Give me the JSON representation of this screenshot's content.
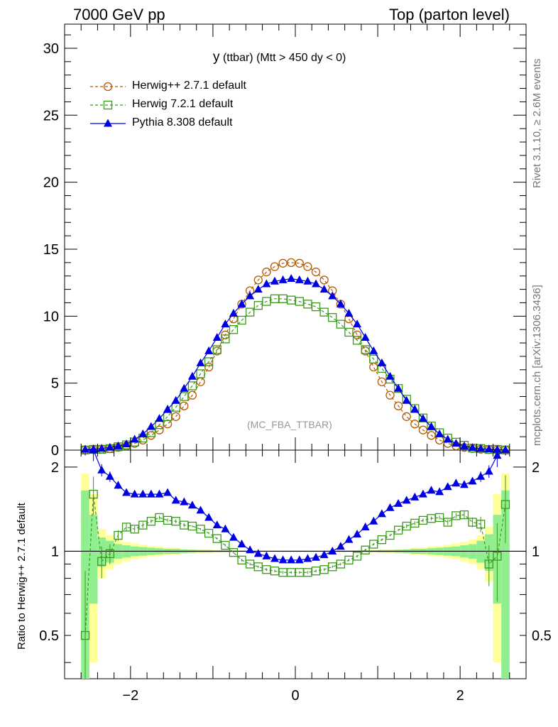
{
  "header": {
    "left": "7000 GeV pp",
    "right": "Top (parton level)"
  },
  "side_texts": {
    "rivet": "Rivet 3.1.10, ≥ 2.6M events",
    "mcplots": "mcplots.cern.ch [arXiv:1306.3436]"
  },
  "chart_data": {
    "type": "line",
    "title_main": "y",
    "title_rest": " (ttbar) (Mtt > 450 dy < 0)",
    "watermark": "(MC_FBA_TTBAR)",
    "ratio_ylabel": "Ratio to Herwig++ 2.7.1 default",
    "xlim": [
      -2.8,
      2.8
    ],
    "ylim": [
      0,
      31.8
    ],
    "ratio_ylim": [
      0.35,
      2.3
    ],
    "x_ticks": [
      -2,
      0,
      2
    ],
    "y_ticks": [
      0,
      5,
      10,
      15,
      20,
      25,
      30
    ],
    "ratio_ticks": [
      0.5,
      1,
      2
    ],
    "legend_position": "top-left",
    "x": [
      -2.55,
      -2.45,
      -2.35,
      -2.25,
      -2.15,
      -2.05,
      -1.95,
      -1.85,
      -1.75,
      -1.65,
      -1.55,
      -1.45,
      -1.35,
      -1.25,
      -1.15,
      -1.05,
      -0.95,
      -0.85,
      -0.75,
      -0.65,
      -0.55,
      -0.45,
      -0.35,
      -0.25,
      -0.15,
      -0.05,
      0.05,
      0.15,
      0.25,
      0.35,
      0.45,
      0.55,
      0.65,
      0.75,
      0.85,
      0.95,
      1.05,
      1.15,
      1.25,
      1.35,
      1.45,
      1.55,
      1.65,
      1.75,
      1.85,
      1.95,
      2.05,
      2.15,
      2.25,
      2.35,
      2.45,
      2.55
    ],
    "series": [
      {
        "name": "Herwig++ 2.7.1 default",
        "color": "#b35900",
        "marker": "circle",
        "dashed": true,
        "values": [
          0.02,
          0.04,
          0.07,
          0.12,
          0.2,
          0.32,
          0.5,
          0.75,
          1.1,
          1.5,
          1.95,
          2.5,
          3.3,
          4.1,
          5.1,
          6.2,
          7.4,
          8.6,
          9.8,
          10.9,
          11.9,
          12.7,
          13.3,
          13.7,
          13.95,
          14.0,
          13.95,
          13.7,
          13.3,
          12.7,
          11.9,
          10.9,
          9.8,
          8.6,
          7.4,
          6.2,
          5.1,
          4.1,
          3.3,
          2.5,
          1.95,
          1.5,
          1.1,
          0.75,
          0.5,
          0.32,
          0.2,
          0.12,
          0.07,
          0.04,
          0.02,
          0.01
        ]
      },
      {
        "name": "Herwig 7.2.1 default",
        "color": "#3a9a1a",
        "marker": "square",
        "dashed": true,
        "values": [
          0.01,
          0.06,
          0.06,
          0.11,
          0.25,
          0.39,
          0.6,
          0.9,
          1.3,
          1.9,
          2.5,
          3.2,
          4.0,
          4.8,
          5.7,
          6.6,
          7.5,
          8.3,
          9.0,
          9.7,
          10.3,
          10.8,
          11.1,
          11.3,
          11.3,
          11.2,
          11.1,
          10.9,
          10.7,
          10.3,
          9.9,
          9.4,
          8.8,
          8.2,
          7.5,
          6.8,
          6.1,
          5.3,
          4.6,
          3.8,
          3.1,
          2.4,
          1.8,
          1.3,
          0.9,
          0.59,
          0.36,
          0.15,
          0.12,
          0.05,
          0.06,
          0.01
        ]
      },
      {
        "name": "Pythia 8.308 default",
        "color": "#0000e6",
        "marker": "triangle",
        "dashed": false,
        "values": [
          0.05,
          0.08,
          0.12,
          0.2,
          0.3,
          0.45,
          0.8,
          1.2,
          1.75,
          2.35,
          3.05,
          3.7,
          4.6,
          5.5,
          6.5,
          7.4,
          8.4,
          9.4,
          10.2,
          10.9,
          11.5,
          12.0,
          12.4,
          12.6,
          12.7,
          12.8,
          12.7,
          12.6,
          12.4,
          12.0,
          11.5,
          10.9,
          10.2,
          9.4,
          8.4,
          7.4,
          6.5,
          5.5,
          4.6,
          3.7,
          3.05,
          2.35,
          1.75,
          1.2,
          0.8,
          0.5,
          0.3,
          0.18,
          0.11,
          0.07,
          0.04,
          0.02
        ]
      }
    ],
    "ratio_series": [
      {
        "name": "Herwig 7.2.1 default",
        "values": [
          0.5,
          1.6,
          0.92,
          0.98,
          1.14,
          1.22,
          1.2,
          1.24,
          1.28,
          1.32,
          1.29,
          1.28,
          1.24,
          1.23,
          1.2,
          1.16,
          1.11,
          1.05,
          0.99,
          0.93,
          0.9,
          0.88,
          0.86,
          0.85,
          0.84,
          0.84,
          0.84,
          0.84,
          0.85,
          0.86,
          0.88,
          0.9,
          0.93,
          0.96,
          1.01,
          1.06,
          1.1,
          1.14,
          1.19,
          1.23,
          1.26,
          1.29,
          1.31,
          1.32,
          1.27,
          1.34,
          1.35,
          1.27,
          1.25,
          0.9,
          0.96,
          1.47
        ]
      },
      {
        "name": "Pythia 8.308 default",
        "values": [
          2.5,
          2.3,
          1.95,
          1.85,
          1.72,
          1.62,
          1.6,
          1.6,
          1.6,
          1.6,
          1.62,
          1.52,
          1.5,
          1.46,
          1.4,
          1.32,
          1.24,
          1.2,
          1.12,
          1.06,
          1.01,
          0.98,
          0.96,
          0.94,
          0.93,
          0.93,
          0.93,
          0.94,
          0.95,
          0.97,
          1.0,
          1.04,
          1.1,
          1.15,
          1.22,
          1.28,
          1.36,
          1.43,
          1.48,
          1.52,
          1.56,
          1.6,
          1.65,
          1.63,
          1.7,
          1.75,
          1.73,
          1.78,
          1.85,
          1.93,
          2.2,
          2.5
        ]
      }
    ],
    "ratio_errors": {
      "Herwig 7.2.1 default": [
        0.35,
        0.25,
        0.12,
        0.08,
        0.05,
        0.04,
        0.03,
        0.03,
        0.02,
        0.02,
        0.02,
        0.02,
        0.02,
        0.01,
        0.01,
        0.01,
        0.01,
        0.01,
        0.01,
        0.01,
        0.01,
        0.01,
        0.01,
        0.01,
        0.01,
        0.01,
        0.01,
        0.01,
        0.01,
        0.01,
        0.01,
        0.01,
        0.01,
        0.01,
        0.01,
        0.01,
        0.01,
        0.01,
        0.01,
        0.02,
        0.02,
        0.02,
        0.02,
        0.02,
        0.03,
        0.03,
        0.04,
        0.05,
        0.08,
        0.15,
        0.3,
        0.4
      ],
      "Pythia 8.308 default": [
        0.3,
        0.2,
        0.1,
        0.08,
        0.05,
        0.04,
        0.03,
        0.03,
        0.02,
        0.02,
        0.02,
        0.02,
        0.01,
        0.01,
        0.01,
        0.01,
        0.01,
        0.01,
        0.01,
        0.01,
        0.01,
        0.01,
        0.01,
        0.01,
        0.01,
        0.01,
        0.01,
        0.01,
        0.01,
        0.01,
        0.01,
        0.01,
        0.01,
        0.01,
        0.01,
        0.01,
        0.01,
        0.01,
        0.01,
        0.01,
        0.02,
        0.02,
        0.02,
        0.02,
        0.02,
        0.03,
        0.04,
        0.05,
        0.08,
        0.1,
        0.2,
        0.3
      ]
    },
    "uncertainty_band": {
      "stat_color": "#90ee90",
      "total_color": "#ffff99",
      "stat_halfwidth": [
        0.65,
        0.35,
        0.12,
        0.09,
        0.06,
        0.05,
        0.04,
        0.035,
        0.03,
        0.025,
        0.02,
        0.02,
        0.015,
        0.012,
        0.01,
        0.01,
        0.008,
        0.007,
        0.006,
        0.005,
        0.005,
        0.004,
        0.004,
        0.004,
        0.004,
        0.004,
        0.004,
        0.004,
        0.004,
        0.004,
        0.004,
        0.005,
        0.005,
        0.006,
        0.007,
        0.008,
        0.01,
        0.01,
        0.012,
        0.015,
        0.02,
        0.02,
        0.025,
        0.03,
        0.035,
        0.04,
        0.05,
        0.06,
        0.09,
        0.15,
        0.35,
        0.65
      ],
      "total_halfwidth": [
        0.9,
        0.6,
        0.2,
        0.14,
        0.1,
        0.08,
        0.065,
        0.055,
        0.045,
        0.038,
        0.032,
        0.028,
        0.022,
        0.018,
        0.015,
        0.013,
        0.011,
        0.01,
        0.009,
        0.008,
        0.007,
        0.006,
        0.006,
        0.006,
        0.006,
        0.006,
        0.006,
        0.006,
        0.006,
        0.006,
        0.006,
        0.007,
        0.008,
        0.009,
        0.01,
        0.011,
        0.013,
        0.015,
        0.018,
        0.022,
        0.028,
        0.032,
        0.038,
        0.045,
        0.055,
        0.065,
        0.08,
        0.1,
        0.14,
        0.22,
        0.6,
        0.9
      ]
    }
  }
}
